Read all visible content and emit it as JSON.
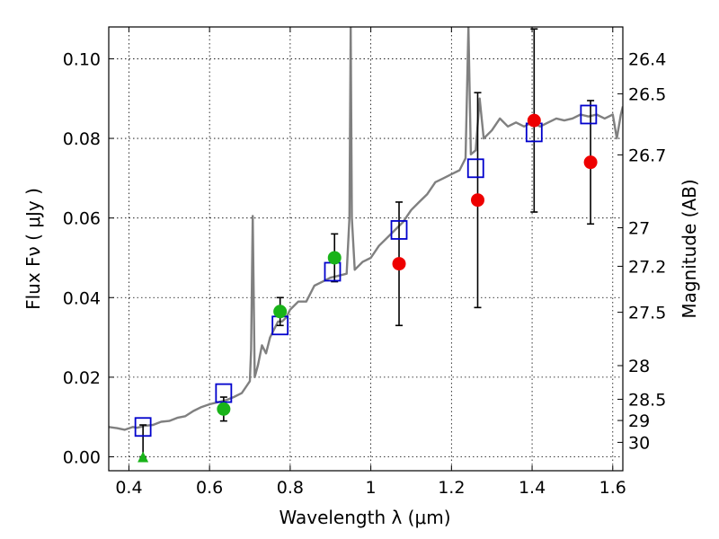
{
  "chart_data": {
    "type": "scatter",
    "xlabel": "Wavelength  λ (μm)",
    "ylabel": "Flux  Fν  ( μJy )",
    "y2label": "Magnitude (AB)",
    "xlim": [
      0.35,
      1.625
    ],
    "ylim": [
      -0.0035,
      0.108
    ],
    "grid": true,
    "colors": {
      "spectrum": "#808080",
      "model_box": "#0000cc",
      "green_point": "#19b319",
      "red_point": "#ee0000",
      "errorbar": "#000000"
    },
    "x_ticks": [
      {
        "value": 0.4,
        "label": "0.4"
      },
      {
        "value": 0.6,
        "label": "0.6"
      },
      {
        "value": 0.8,
        "label": "0.8"
      },
      {
        "value": 1.0,
        "label": "1"
      },
      {
        "value": 1.2,
        "label": "1.2"
      },
      {
        "value": 1.4,
        "label": "1.4"
      },
      {
        "value": 1.6,
        "label": "1.6"
      }
    ],
    "y_ticks": [
      {
        "value": 0.0,
        "label": "0.00"
      },
      {
        "value": 0.02,
        "label": "0.02"
      },
      {
        "value": 0.04,
        "label": "0.04"
      },
      {
        "value": 0.06,
        "label": "0.06"
      },
      {
        "value": 0.08,
        "label": "0.08"
      },
      {
        "value": 0.1,
        "label": "0.10"
      }
    ],
    "magnitude_ticks": [
      {
        "value": 26.4,
        "label": "26.4"
      },
      {
        "value": 26.5,
        "label": "26.5"
      },
      {
        "value": 26.7,
        "label": "26.7"
      },
      {
        "value": 27.0,
        "label": "27"
      },
      {
        "value": 27.2,
        "label": "27.2"
      },
      {
        "value": 27.5,
        "label": "27.5"
      },
      {
        "value": 28.0,
        "label": "28"
      },
      {
        "value": 28.5,
        "label": "28.5"
      },
      {
        "value": 29.0,
        "label": "29"
      },
      {
        "value": 30.0,
        "label": "30"
      }
    ],
    "spectrum": [
      [
        0.35,
        0.0075
      ],
      [
        0.37,
        0.0072
      ],
      [
        0.39,
        0.0068
      ],
      [
        0.41,
        0.0075
      ],
      [
        0.42,
        0.0073
      ],
      [
        0.44,
        0.0078
      ],
      [
        0.46,
        0.008
      ],
      [
        0.48,
        0.0088
      ],
      [
        0.5,
        0.009
      ],
      [
        0.52,
        0.0098
      ],
      [
        0.54,
        0.0102
      ],
      [
        0.56,
        0.0115
      ],
      [
        0.58,
        0.0125
      ],
      [
        0.6,
        0.0132
      ],
      [
        0.62,
        0.0137
      ],
      [
        0.64,
        0.0142
      ],
      [
        0.66,
        0.015
      ],
      [
        0.68,
        0.016
      ],
      [
        0.69,
        0.0175
      ],
      [
        0.7,
        0.019
      ],
      [
        0.703,
        0.027
      ],
      [
        0.707,
        0.0605
      ],
      [
        0.712,
        0.02
      ],
      [
        0.72,
        0.023
      ],
      [
        0.73,
        0.028
      ],
      [
        0.74,
        0.026
      ],
      [
        0.75,
        0.03
      ],
      [
        0.76,
        0.032
      ],
      [
        0.77,
        0.034
      ],
      [
        0.78,
        0.034
      ],
      [
        0.79,
        0.035
      ],
      [
        0.8,
        0.037
      ],
      [
        0.82,
        0.039
      ],
      [
        0.84,
        0.039
      ],
      [
        0.86,
        0.043
      ],
      [
        0.88,
        0.044
      ],
      [
        0.9,
        0.045
      ],
      [
        0.92,
        0.0455
      ],
      [
        0.94,
        0.046
      ],
      [
        0.947,
        0.06
      ],
      [
        0.95,
        0.108
      ],
      [
        0.953,
        0.06
      ],
      [
        0.96,
        0.047
      ],
      [
        0.98,
        0.049
      ],
      [
        1.0,
        0.05
      ],
      [
        1.02,
        0.053
      ],
      [
        1.04,
        0.055
      ],
      [
        1.06,
        0.057
      ],
      [
        1.08,
        0.059
      ],
      [
        1.1,
        0.062
      ],
      [
        1.12,
        0.064
      ],
      [
        1.14,
        0.066
      ],
      [
        1.16,
        0.069
      ],
      [
        1.18,
        0.07
      ],
      [
        1.2,
        0.071
      ],
      [
        1.22,
        0.072
      ],
      [
        1.235,
        0.075
      ],
      [
        1.242,
        0.108
      ],
      [
        1.248,
        0.076
      ],
      [
        1.26,
        0.077
      ],
      [
        1.27,
        0.09
      ],
      [
        1.28,
        0.08
      ],
      [
        1.3,
        0.082
      ],
      [
        1.32,
        0.085
      ],
      [
        1.34,
        0.083
      ],
      [
        1.36,
        0.084
      ],
      [
        1.38,
        0.083
      ],
      [
        1.4,
        0.084
      ],
      [
        1.42,
        0.083
      ],
      [
        1.44,
        0.084
      ],
      [
        1.46,
        0.085
      ],
      [
        1.48,
        0.0845
      ],
      [
        1.5,
        0.085
      ],
      [
        1.52,
        0.086
      ],
      [
        1.54,
        0.0855
      ],
      [
        1.56,
        0.086
      ],
      [
        1.58,
        0.085
      ],
      [
        1.6,
        0.086
      ],
      [
        1.61,
        0.08
      ],
      [
        1.62,
        0.086
      ],
      [
        1.625,
        0.088
      ]
    ],
    "model_boxes": [
      {
        "x": 0.435,
        "y": 0.0075
      },
      {
        "x": 0.635,
        "y": 0.016
      },
      {
        "x": 0.775,
        "y": 0.033
      },
      {
        "x": 0.905,
        "y": 0.0465
      },
      {
        "x": 1.07,
        "y": 0.057
      },
      {
        "x": 1.26,
        "y": 0.0725
      },
      {
        "x": 1.405,
        "y": 0.0815
      },
      {
        "x": 1.54,
        "y": 0.086
      }
    ],
    "observed_points": [
      {
        "x": 0.435,
        "y": 0.0,
        "err_low": 0.0,
        "err_high": 0.008,
        "marker": "triangle",
        "color": "green"
      },
      {
        "x": 0.635,
        "y": 0.012,
        "err_low": 0.003,
        "err_high": 0.003,
        "marker": "circle",
        "color": "green"
      },
      {
        "x": 0.775,
        "y": 0.0365,
        "err_low": 0.0035,
        "err_high": 0.0035,
        "marker": "circle",
        "color": "green"
      },
      {
        "x": 0.91,
        "y": 0.05,
        "err_low": 0.006,
        "err_high": 0.006,
        "marker": "circle",
        "color": "green"
      },
      {
        "x": 1.07,
        "y": 0.0485,
        "err_low": 0.0155,
        "err_high": 0.0155,
        "marker": "circle",
        "color": "red"
      },
      {
        "x": 1.265,
        "y": 0.0645,
        "err_low": 0.027,
        "err_high": 0.027,
        "marker": "circle",
        "color": "red"
      },
      {
        "x": 1.405,
        "y": 0.0845,
        "err_low": 0.023,
        "err_high": 0.023,
        "marker": "circle",
        "color": "red"
      },
      {
        "x": 1.545,
        "y": 0.074,
        "err_low": 0.0155,
        "err_high": 0.0155,
        "marker": "circle",
        "color": "red"
      }
    ]
  }
}
